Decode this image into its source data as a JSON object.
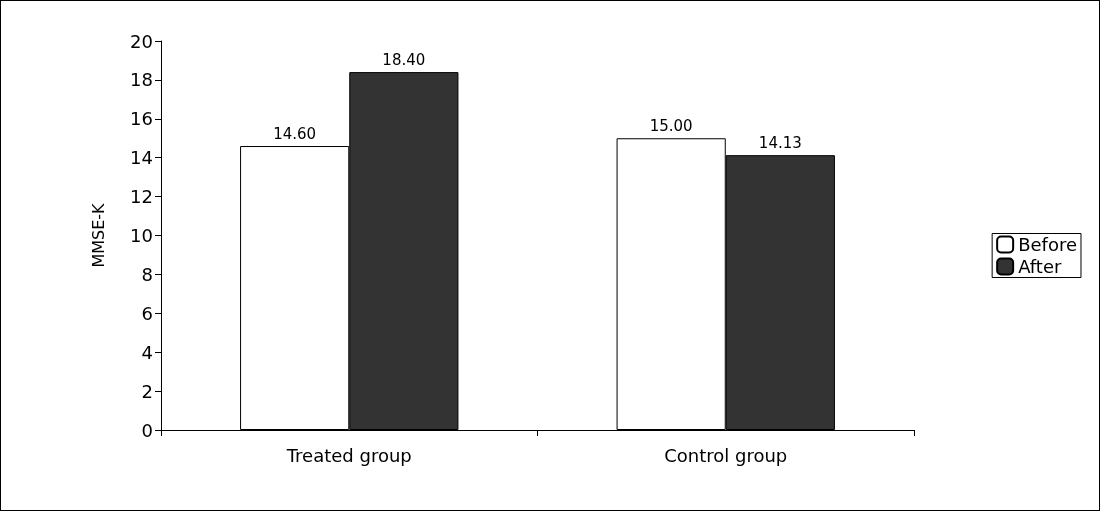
{
  "chart_data": {
    "type": "bar",
    "ylabel": "MMSE-K",
    "categories": [
      "Treated group",
      "Control group"
    ],
    "series": [
      {
        "name": "Before",
        "color": "#ffffff",
        "values": [
          14.6,
          15.0
        ],
        "value_labels": [
          "14.60",
          "15.00"
        ]
      },
      {
        "name": "After",
        "color": "#333333",
        "values": [
          18.4,
          14.13
        ],
        "value_labels": [
          "18.40",
          "14.13"
        ]
      }
    ],
    "ylim": [
      0,
      20
    ],
    "yticks": [
      0,
      2,
      4,
      6,
      8,
      10,
      12,
      14,
      16,
      18,
      20
    ],
    "grid": false,
    "legend": "right"
  }
}
